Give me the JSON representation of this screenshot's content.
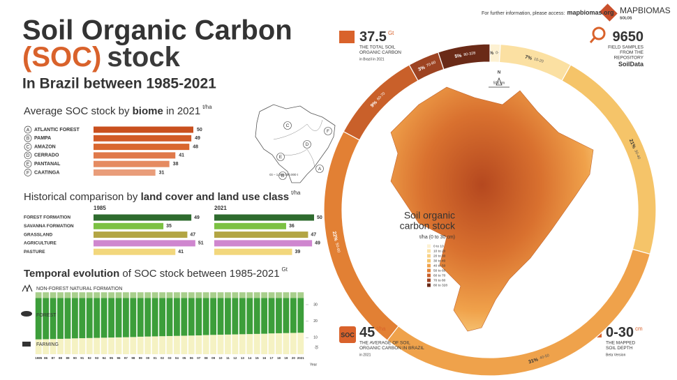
{
  "header": {
    "title_line1": "Soil Organic Carbon",
    "title_line2a": "(SOC)",
    "title_line2b": "stock",
    "subtitle": "In Brazil between 1985-2021",
    "info": "For further information, please access:",
    "link": "mapbiomas.org",
    "brand": "MAPBIOMAS",
    "brand_sub": "SOLOS"
  },
  "biome_map": {
    "scale": "Gt – 1.000.000.000 t"
  },
  "chart_data": [
    {
      "type": "bar",
      "title": [
        "Average SOC stock by ",
        "biome",
        " in 2021"
      ],
      "unit": "t/ha",
      "letters": [
        "A",
        "B",
        "C",
        "D",
        "E",
        "F"
      ],
      "categories": [
        "ATLANTIC FOREST",
        "PAMPA",
        "AMAZON",
        "CERRADO",
        "PANTANAL",
        "CAATINGA"
      ],
      "values": [
        50,
        49,
        48,
        41,
        38,
        31
      ],
      "colors": [
        "#c9501e",
        "#d15a26",
        "#d9672f",
        "#e0794a",
        "#e58b61",
        "#e99d7a"
      ]
    },
    {
      "type": "bar",
      "title": [
        "Historical comparison by ",
        "land cover and land use class"
      ],
      "unit": "t/ha",
      "categories": [
        "FOREST FORMATION",
        "SAVANNA FORMATION",
        "GRASSLAND",
        "AGRICULTURE",
        "PASTURE"
      ],
      "colors": [
        "#2e6b2e",
        "#7cc143",
        "#b3a543",
        "#cf86cf",
        "#f2d77c"
      ],
      "series": [
        {
          "name": "1985",
          "values": [
            49,
            35,
            47,
            51,
            41
          ]
        },
        {
          "name": "2021",
          "values": [
            50,
            36,
            47,
            49,
            39
          ]
        }
      ]
    },
    {
      "type": "stacked-bar",
      "title": [
        "Temporal evolution",
        " of SOC stock between 1985-2021"
      ],
      "unit": "Gt",
      "x_label": "Year",
      "categories": [
        "1985",
        "86",
        "87",
        "88",
        "89",
        "90",
        "91",
        "92",
        "93",
        "94",
        "95",
        "96",
        "97",
        "98",
        "99",
        "00",
        "01",
        "02",
        "03",
        "04",
        "05",
        "06",
        "07",
        "08",
        "09",
        "10",
        "11",
        "12",
        "13",
        "14",
        "15",
        "16",
        "17",
        "18",
        "19",
        "20",
        "2021"
      ],
      "ylim": [
        0,
        38
      ],
      "yticks": [
        10,
        20,
        30
      ],
      "series": [
        {
          "name": "FARMING",
          "color": "#f5f2c3",
          "values": [
            9.0,
            9.1,
            9.2,
            9.3,
            9.4,
            9.6,
            9.7,
            9.8,
            9.9,
            10.0,
            10.1,
            10.2,
            10.3,
            10.4,
            10.6,
            10.7,
            10.8,
            10.9,
            11.0,
            11.1,
            11.2,
            11.3,
            11.4,
            11.6,
            11.7,
            11.8,
            11.9,
            12.0,
            12.1,
            12.2,
            12.3,
            12.4,
            12.6,
            12.7,
            12.8,
            12.9,
            13.0
          ]
        },
        {
          "name": "FOREST",
          "color": "#3c9e3a",
          "values": [
            25.0,
            24.9,
            24.8,
            24.7,
            24.6,
            24.4,
            24.3,
            24.2,
            24.1,
            24.0,
            23.9,
            23.8,
            23.7,
            23.6,
            23.4,
            23.3,
            23.2,
            23.1,
            23.0,
            22.9,
            22.8,
            22.7,
            22.6,
            22.4,
            22.3,
            22.2,
            22.1,
            22.0,
            21.9,
            21.8,
            21.7,
            21.6,
            21.4,
            21.3,
            21.2,
            21.1,
            21.0
          ]
        },
        {
          "name": "NON-FOREST NATURAL FORMATION",
          "color": "#a8cf8c",
          "values": [
            3.5,
            3.5,
            3.5,
            3.5,
            3.5,
            3.5,
            3.5,
            3.5,
            3.5,
            3.5,
            3.5,
            3.5,
            3.5,
            3.5,
            3.5,
            3.5,
            3.5,
            3.5,
            3.5,
            3.5,
            3.5,
            3.5,
            3.5,
            3.5,
            3.5,
            3.5,
            3.5,
            3.5,
            3.5,
            3.5,
            3.5,
            3.5,
            3.5,
            3.5,
            3.5,
            3.5,
            3.5
          ]
        }
      ]
    },
    {
      "type": "pie",
      "categories": [
        "0-10",
        "10-20",
        "30-40",
        "40-50",
        "50-60",
        "60-70",
        "70-80",
        "80-328"
      ],
      "values": [
        1,
        7,
        21,
        31,
        22,
        9,
        3,
        5
      ],
      "value_labels": [
        "1%",
        "7%",
        "21%",
        "31%",
        "22%",
        "9%",
        "3%",
        "5%"
      ],
      "colors": [
        "#fdf1d2",
        "#fbe0a2",
        "#f5c469",
        "#efa24b",
        "#e28034",
        "#c9602a",
        "#9d4322",
        "#6a2a17"
      ]
    }
  ],
  "map": {
    "north": "N",
    "scale": "500 km",
    "legend_title": [
      "Soil organic",
      "carbon stock"
    ],
    "legend_unit": "t/ha  (0 to 30 cm)",
    "legend_items": [
      "0 to 10",
      "10 to 20",
      "20 to 30",
      "30 to 40",
      "40 to 50",
      "50 to 60",
      "60 to 70",
      "70 to 80",
      "80 to 328"
    ],
    "legend_colors": [
      "#fdf1d2",
      "#fbe0a2",
      "#f8d185",
      "#f5c469",
      "#efa24b",
      "#e28034",
      "#c9602a",
      "#9d4322",
      "#6a2a17"
    ]
  },
  "stats": [
    {
      "value": "37.5",
      "unit": "Gt",
      "lines": [
        "THE TOTAL SOIL",
        "ORGANIC CARBON"
      ],
      "note": "in Brazil in 2021"
    },
    {
      "value": "9650",
      "lines": [
        "FIELD SAMPLES",
        "FROM THE",
        "REPOSITORY"
      ],
      "note": "SoilData"
    },
    {
      "value": "45",
      "unit": "t/ha",
      "icon": "SOC",
      "lines": [
        "THE AVERAGE OF SOIL",
        "ORGANIC CARBON IN BRAZIL"
      ],
      "note": "in 2021"
    },
    {
      "value": "0-30",
      "unit": "cm",
      "lines": [
        "THE MAPPED",
        "SOIL DEPTH"
      ],
      "note": "Beta Version"
    }
  ]
}
